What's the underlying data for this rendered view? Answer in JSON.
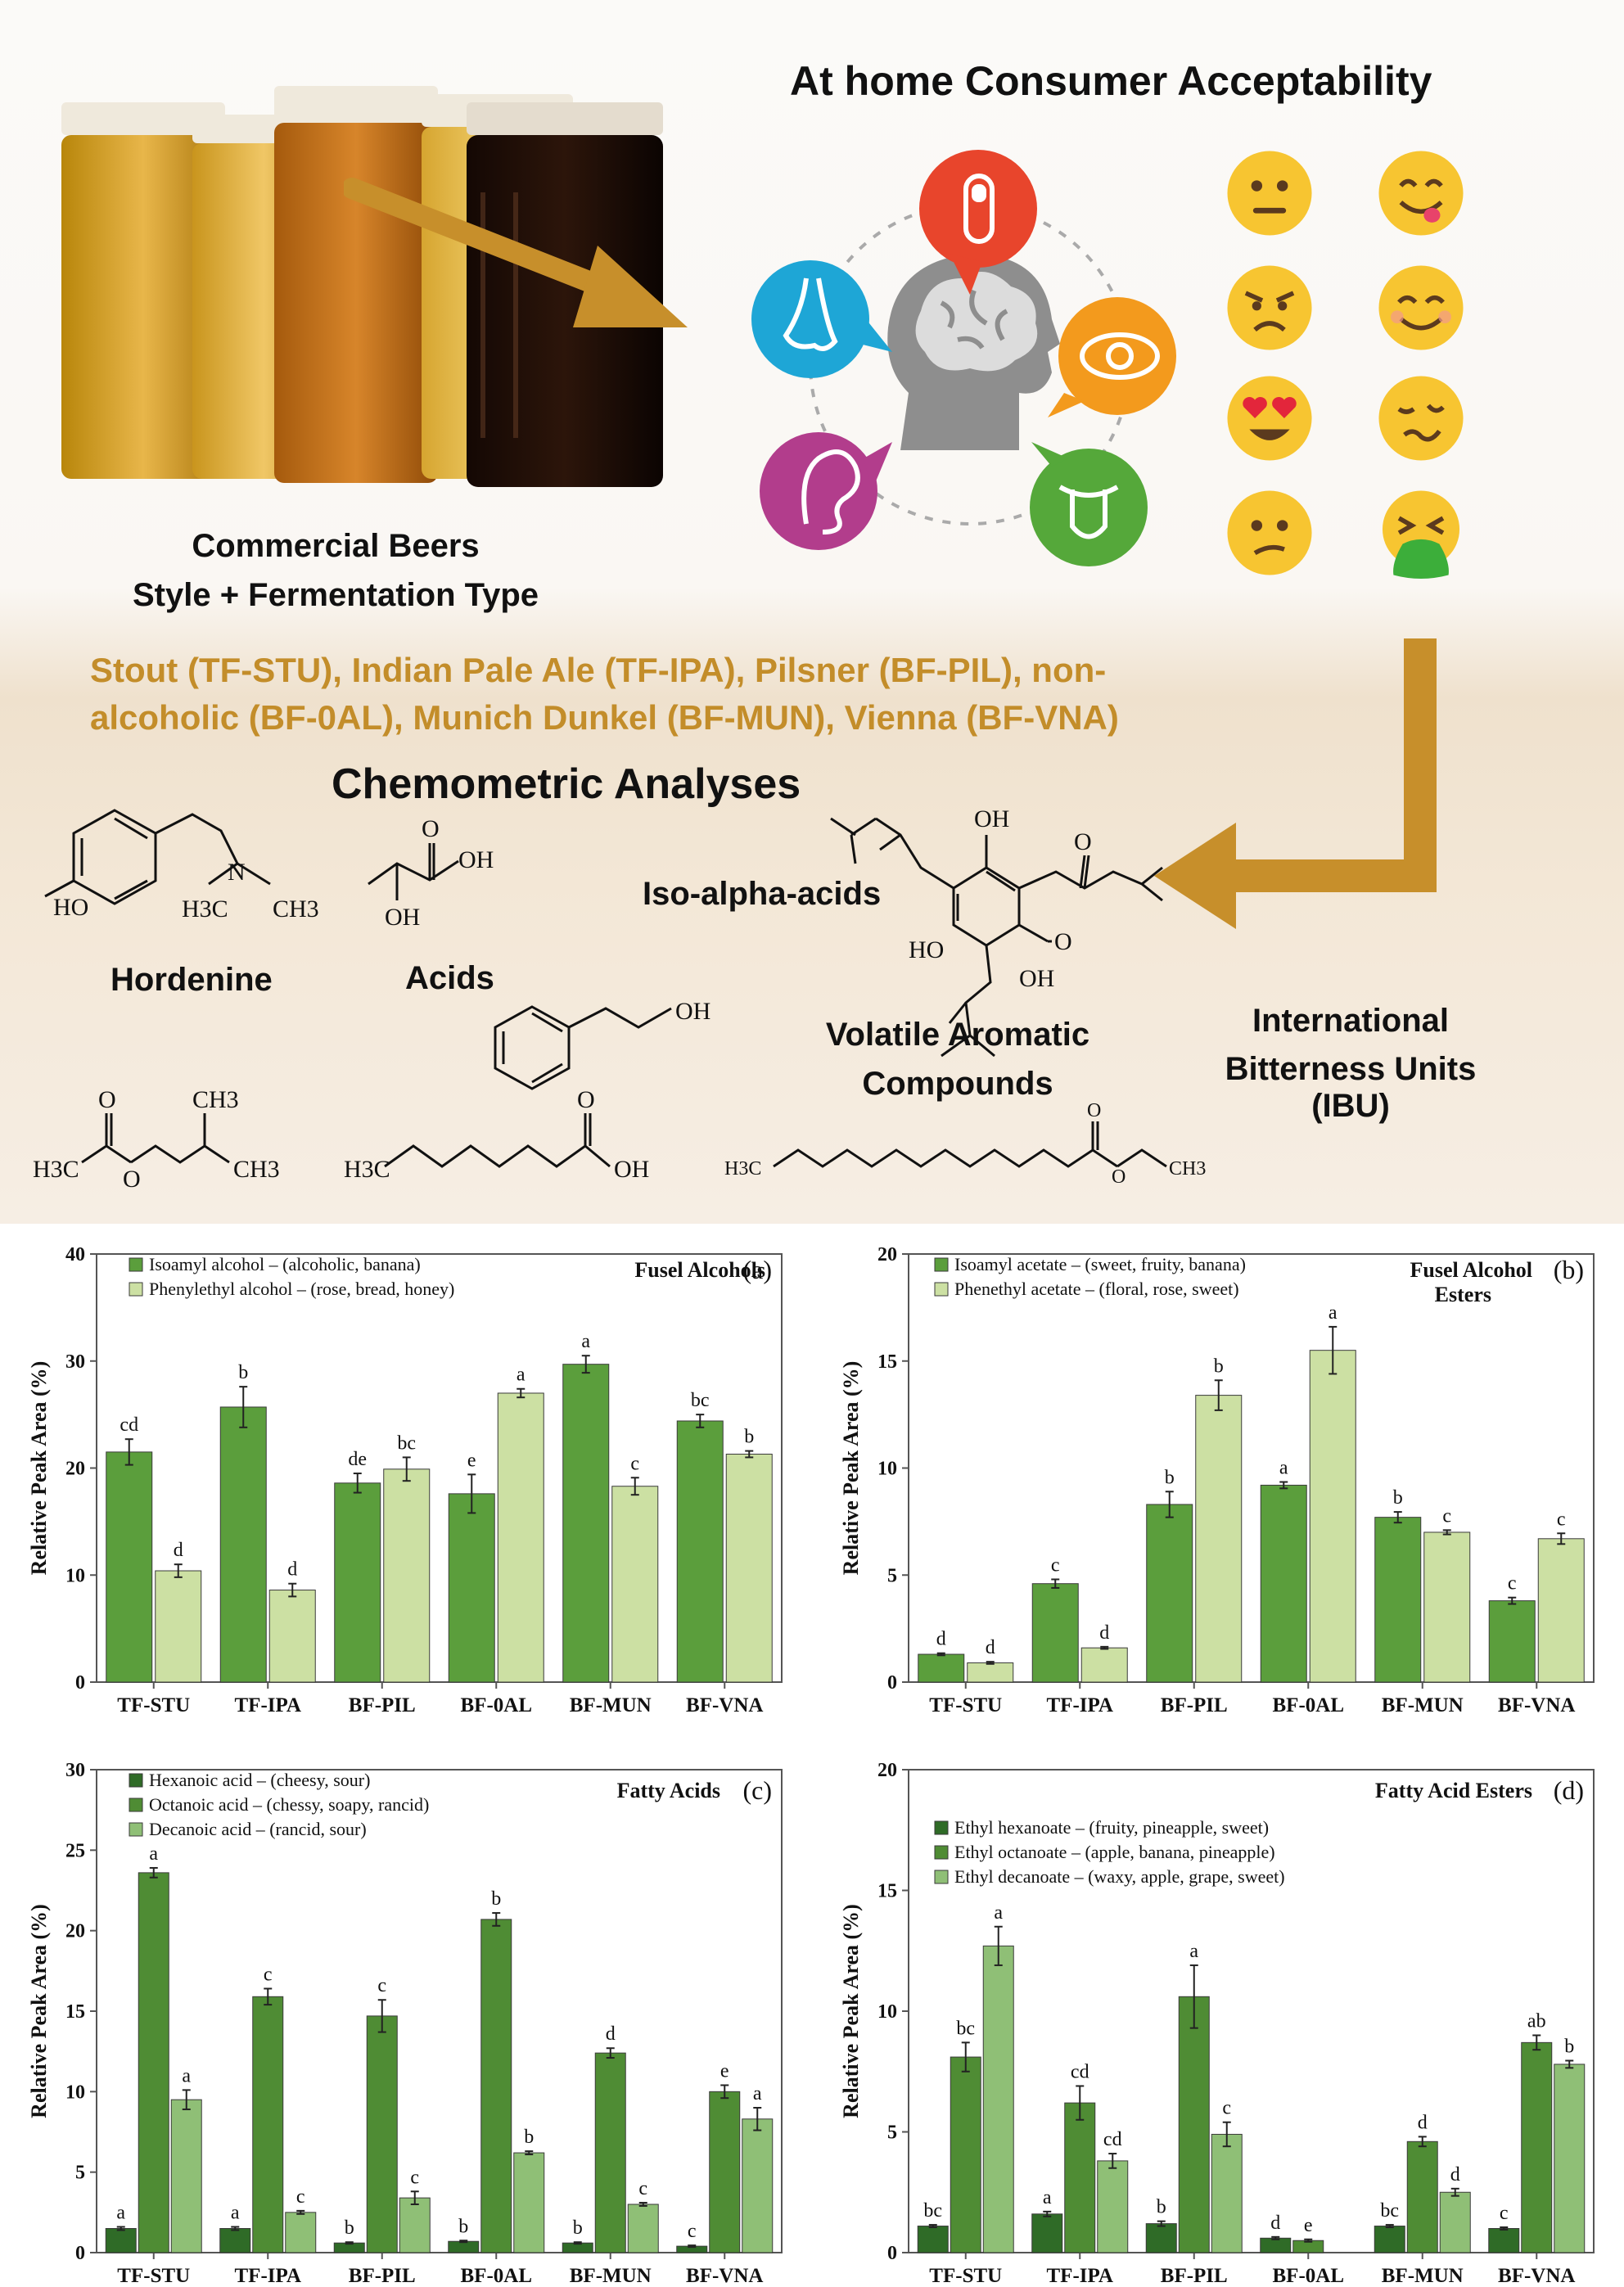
{
  "infographic": {
    "title": "At home Consumer Acceptability",
    "beer_caption_line1": "Commercial Beers",
    "beer_caption_line2": "Style + Fermentation Type",
    "styles_line1": "Stout (TF-STU), Indian Pale Ale (TF-IPA), Pilsner (BF-PIL), non-",
    "styles_line2": "alcoholic (BF-0AL), Munich Dunkel (BF-MUN), Vienna (BF-VNA)",
    "chemometric_title": "Chemometric Analyses",
    "hordenine_label": "Hordenine",
    "acids_label": "Acids",
    "iso_alpha_label": "Iso-alpha-acids",
    "volatile_line1": "Volatile Aromatic",
    "volatile_line2": "Compounds",
    "ibu_line1": "International",
    "ibu_line2": "Bitterness Units (IBU)",
    "senses": [
      {
        "name": "touch-icon",
        "color": "#e8452c"
      },
      {
        "name": "smell-icon",
        "color": "#1ea6d6"
      },
      {
        "name": "sight-icon",
        "color": "#f39a1d"
      },
      {
        "name": "hearing-icon",
        "color": "#b23d8c"
      },
      {
        "name": "taste-icon",
        "color": "#55a83a"
      }
    ],
    "emojis": [
      "neutral-face",
      "savoring-face",
      "angry-face",
      "smiling-face",
      "heart-eyes-face",
      "woozy-face",
      "confused-face",
      "vomiting-face"
    ],
    "chem_text": {
      "hordenine_ho": "HO",
      "hordenine_n": "N",
      "hordenine_h3c": "H3C",
      "hordenine_ch3": "CH3",
      "acid_o": "O",
      "acid_oh": "OH",
      "acid_oh2": "OH",
      "iso_oh1": "OH",
      "iso_o1": "O",
      "iso_ho": "HO",
      "iso_o2": "O",
      "iso_oh2": "OH",
      "ester_h3c": "H3C",
      "ester_o1": "O",
      "ester_o2": "O",
      "ester_ch3a": "CH3",
      "ester_ch3b": "CH3",
      "pea_oh": "OH",
      "octanoic_h3c": "H3C",
      "octanoic_o": "O",
      "octanoic_oh": "OH",
      "laurate_h3c": "H3C",
      "laurate_o1": "O",
      "laurate_o2": "O",
      "laurate_ch3": "CH3"
    }
  },
  "chart_data": [
    {
      "type": "bar",
      "panel": "(a)",
      "title": "Fusel Alcohols",
      "ylabel": "Relative Peak Area  (%)",
      "ylim": [
        0,
        40
      ],
      "yticks": [
        0,
        10,
        20,
        30,
        40
      ],
      "categories": [
        "TF-STU",
        "TF-IPA",
        "BF-PIL",
        "BF-0AL",
        "BF-MUN",
        "BF-VNA"
      ],
      "series": [
        {
          "name": "Isoamyl alcohol – (alcoholic, banana)",
          "color": "#5b9e3c",
          "values": [
            21.5,
            25.7,
            18.6,
            17.6,
            29.7,
            24.4
          ],
          "errors": [
            1.2,
            1.9,
            0.9,
            1.8,
            0.8,
            0.6
          ],
          "letters": [
            "cd",
            "b",
            "de",
            "e",
            "a",
            "bc"
          ]
        },
        {
          "name": "Phenylethyl alcohol – (rose, bread, honey)",
          "color": "#cce0a3",
          "values": [
            10.4,
            8.6,
            19.9,
            27.0,
            18.3,
            21.3
          ],
          "errors": [
            0.6,
            0.6,
            1.1,
            0.4,
            0.8,
            0.3
          ],
          "letters": [
            "d",
            "d",
            "bc",
            "a",
            "c",
            "b"
          ]
        }
      ]
    },
    {
      "type": "bar",
      "panel": "(b)",
      "title": "Fusel Alcohol Esters",
      "ylabel": "Relative Peak Area (%)",
      "ylim": [
        0,
        20
      ],
      "yticks": [
        0,
        5,
        10,
        15,
        20
      ],
      "categories": [
        "TF-STU",
        "TF-IPA",
        "BF-PIL",
        "BF-0AL",
        "BF-MUN",
        "BF-VNA"
      ],
      "series": [
        {
          "name": "Isoamyl acetate – (sweet, fruity, banana)",
          "color": "#5b9e3c",
          "values": [
            1.3,
            4.6,
            8.3,
            9.2,
            7.7,
            3.8
          ],
          "errors": [
            0.05,
            0.2,
            0.6,
            0.15,
            0.25,
            0.15
          ],
          "letters": [
            "d",
            "c",
            "b",
            "a",
            "b",
            "c"
          ]
        },
        {
          "name": "Phenethyl acetate – (floral, rose, sweet)",
          "color": "#cce0a3",
          "values": [
            0.9,
            1.6,
            13.4,
            15.5,
            7.0,
            6.7
          ],
          "errors": [
            0.05,
            0.05,
            0.7,
            1.1,
            0.1,
            0.25
          ],
          "letters": [
            "d",
            "d",
            "b",
            "a",
            "c",
            "c"
          ]
        }
      ]
    },
    {
      "type": "bar",
      "panel": "(c)",
      "title": "Fatty Acids",
      "ylabel": "Relative Peak Area (%)",
      "ylim": [
        0,
        30
      ],
      "yticks": [
        0,
        5,
        10,
        15,
        20,
        25,
        30
      ],
      "categories": [
        "TF-STU",
        "TF-IPA",
        "BF-PIL",
        "BF-0AL",
        "BF-MUN",
        "BF-VNA"
      ],
      "series": [
        {
          "name": "Hexanoic acid – (cheesy, sour)",
          "color": "#2f6b27",
          "values": [
            1.5,
            1.5,
            0.6,
            0.7,
            0.6,
            0.4
          ],
          "errors": [
            0.1,
            0.1,
            0.05,
            0.05,
            0.05,
            0.05
          ],
          "letters": [
            "a",
            "a",
            "b",
            "b",
            "b",
            "c"
          ]
        },
        {
          "name": "Octanoic acid – (chessy, soapy, rancid)",
          "color": "#4f8c34",
          "values": [
            23.6,
            15.9,
            14.7,
            20.7,
            12.4,
            10.0
          ],
          "errors": [
            0.3,
            0.5,
            1.0,
            0.4,
            0.3,
            0.4
          ],
          "letters": [
            "a",
            "c",
            "c",
            "b",
            "d",
            "e"
          ]
        },
        {
          "name": "Decanoic acid – (rancid, sour)",
          "color": "#8fbf76",
          "values": [
            9.5,
            2.5,
            3.4,
            6.2,
            3.0,
            8.3
          ],
          "errors": [
            0.6,
            0.1,
            0.4,
            0.1,
            0.1,
            0.7
          ],
          "letters": [
            "a",
            "c",
            "c",
            "b",
            "c",
            "a"
          ]
        }
      ]
    },
    {
      "type": "bar",
      "panel": "(d)",
      "title": "Fatty Acid Esters",
      "ylabel": "Relative Peak Area (%)",
      "ylim": [
        0,
        20
      ],
      "yticks": [
        0,
        5,
        10,
        15,
        20
      ],
      "categories": [
        "TF-STU",
        "TF-IPA",
        "BF-PIL",
        "BF-0AL",
        "BF-MUN",
        "BF-VNA"
      ],
      "series": [
        {
          "name": "Ethyl hexanoate – (fruity, pineapple, sweet)",
          "color": "#2f6b27",
          "values": [
            1.1,
            1.6,
            1.2,
            0.6,
            1.1,
            1.0
          ],
          "errors": [
            0.05,
            0.1,
            0.1,
            0.05,
            0.05,
            0.05
          ],
          "letters": [
            "bc",
            "a",
            "b",
            "d",
            "bc",
            "c"
          ]
        },
        {
          "name": "Ethyl octanoate – (apple, banana, pineapple)",
          "color": "#4f8c34",
          "values": [
            8.1,
            6.2,
            10.6,
            0.5,
            4.6,
            8.7
          ],
          "errors": [
            0.6,
            0.7,
            1.3,
            0.05,
            0.2,
            0.3
          ],
          "letters": [
            "bc",
            "cd",
            "a",
            "e",
            "d",
            "ab"
          ]
        },
        {
          "name": "Ethyl decanoate – (waxy, apple, grape, sweet)",
          "color": "#8fbf76",
          "values": [
            12.7,
            3.8,
            4.9,
            0.0,
            2.5,
            7.8
          ],
          "errors": [
            0.8,
            0.3,
            0.5,
            0.0,
            0.15,
            0.15
          ],
          "letters": [
            "a",
            "cd",
            "c",
            "",
            "d",
            "b"
          ]
        }
      ]
    }
  ]
}
